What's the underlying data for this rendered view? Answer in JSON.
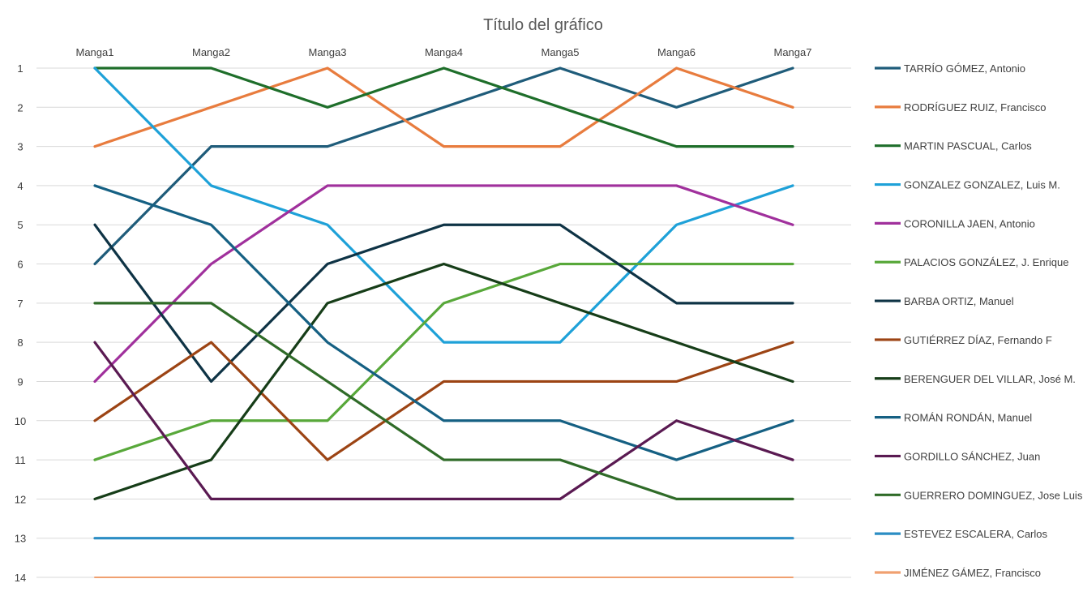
{
  "chart_data": {
    "type": "line",
    "title": "Título del gráfico",
    "categories": [
      "Manga1",
      "Manga2",
      "Manga3",
      "Manga4",
      "Manga5",
      "Manga6",
      "Manga7"
    ],
    "y_ticks": [
      1,
      2,
      3,
      4,
      5,
      6,
      7,
      8,
      9,
      10,
      11,
      12,
      13,
      14
    ],
    "ylim": [
      1,
      14
    ],
    "y_reversed": true,
    "grid": true,
    "legend_position": "right",
    "series": [
      {
        "name": "TARRÍO GÓMEZ, Antonio",
        "color": "#1f5c7a",
        "values": [
          6,
          3,
          3,
          2,
          1,
          2,
          1
        ]
      },
      {
        "name": "RODRÍGUEZ RUIZ, Francisco",
        "color": "#e87c3e",
        "values": [
          3,
          2,
          1,
          3,
          3,
          1,
          2
        ]
      },
      {
        "name": "MARTIN PASCUAL, Carlos",
        "color": "#1e6e2a",
        "values": [
          1,
          1,
          2,
          1,
          2,
          3,
          3
        ]
      },
      {
        "name": "GONZALEZ GONZALEZ, Luis M.",
        "color": "#1ea1d8",
        "values": [
          1,
          4,
          5,
          8,
          8,
          5,
          4
        ]
      },
      {
        "name": "CORONILLA JAEN, Antonio",
        "color": "#a0309c",
        "values": [
          9,
          6,
          4,
          4,
          4,
          4,
          5
        ]
      },
      {
        "name": "PALACIOS GONZÁLEZ, J. Enrique",
        "color": "#58a83a",
        "values": [
          11,
          10,
          10,
          7,
          6,
          6,
          6
        ]
      },
      {
        "name": "BARBA ORTIZ, Manuel",
        "color": "#0e3345",
        "values": [
          5,
          9,
          6,
          5,
          5,
          7,
          7
        ]
      },
      {
        "name": "GUTIÉRREZ DÍAZ, Fernando F",
        "color": "#9c4414",
        "values": [
          10,
          8,
          11,
          9,
          9,
          9,
          8
        ]
      },
      {
        "name": "BERENGUER DEL VILLAR, José M.",
        "color": "#163d18",
        "values": [
          12,
          11,
          7,
          6,
          7,
          8,
          9
        ]
      },
      {
        "name": "ROMÁN RONDÁN, Manuel",
        "color": "#156083",
        "values": [
          4,
          5,
          8,
          10,
          10,
          11,
          10
        ]
      },
      {
        "name": "GORDILLO SÁNCHEZ, Juan",
        "color": "#5a1a52",
        "values": [
          8,
          12,
          12,
          12,
          12,
          10,
          11
        ]
      },
      {
        "name": "GUERRERO DOMINGUEZ, Jose Luis",
        "color": "#2f6b28",
        "values": [
          7,
          7,
          9,
          11,
          11,
          12,
          12
        ]
      },
      {
        "name": "ESTEVEZ ESCALERA, Carlos",
        "color": "#2b8dc4",
        "values": [
          13,
          13,
          13,
          13,
          13,
          13,
          13
        ]
      },
      {
        "name": "JIMÉNEZ GÁMEZ, Francisco",
        "color": "#f0a070",
        "values": [
          14,
          14,
          14,
          14,
          14,
          14,
          14
        ]
      }
    ]
  }
}
